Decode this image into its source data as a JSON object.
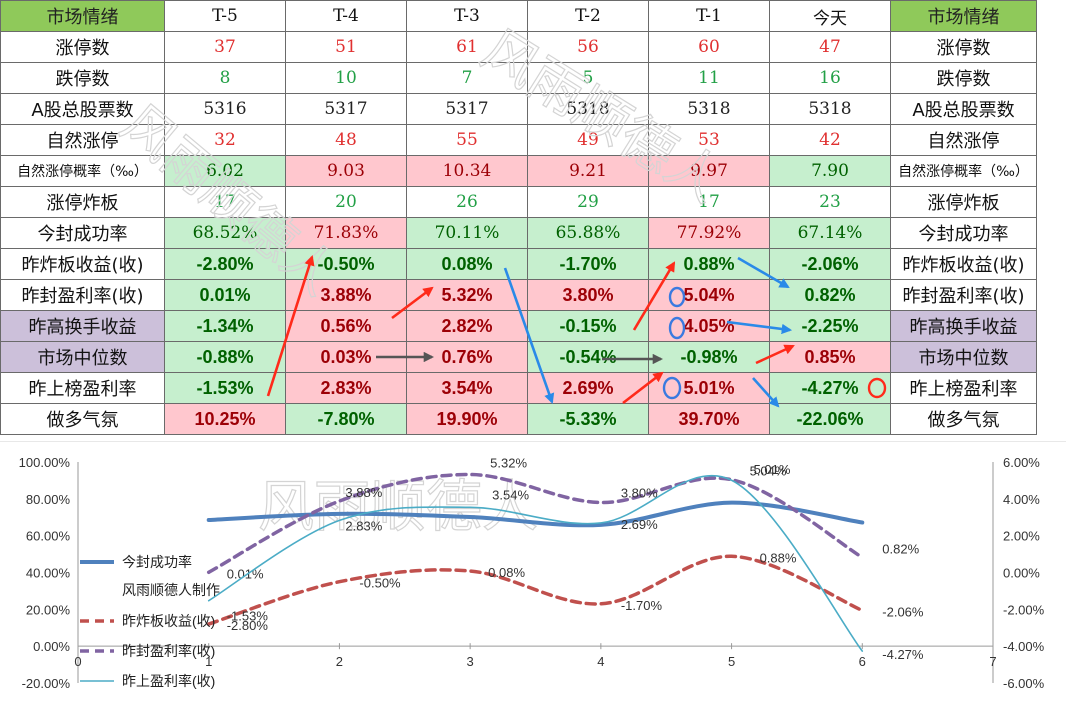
{
  "table": {
    "header": {
      "left_label": "市场情绪",
      "columns": [
        "T-5",
        "T-4",
        "T-3",
        "T-2",
        "T-1",
        "今天"
      ],
      "right_label": "市场情绪"
    },
    "rows": [
      {
        "label": "涨停数",
        "values": [
          "37",
          "51",
          "61",
          "56",
          "60",
          "47"
        ],
        "color": "#e03030"
      },
      {
        "label": "跌停数",
        "values": [
          "8",
          "10",
          "7",
          "5",
          "11",
          "16"
        ],
        "color": "#22a046"
      },
      {
        "label": "A股总股票数",
        "values": [
          "5316",
          "5317",
          "5317",
          "5318",
          "5318",
          "5318"
        ],
        "color": "#222222"
      },
      {
        "label": "自然涨停",
        "values": [
          "32",
          "48",
          "55",
          "49",
          "53",
          "42"
        ],
        "color": "#e03030"
      },
      {
        "label": "自然涨停概率（‰）",
        "values": [
          "6.02",
          "9.03",
          "10.34",
          "9.21",
          "9.97",
          "7.90"
        ],
        "bg": [
          "g",
          "r",
          "r",
          "r",
          "r",
          "g"
        ],
        "small_label": true
      },
      {
        "label": "涨停炸板",
        "values": [
          "17",
          "20",
          "26",
          "29",
          "17",
          "23"
        ],
        "color": "#22a046"
      },
      {
        "label": "今封成功率",
        "values": [
          "68.52%",
          "71.83%",
          "70.11%",
          "65.88%",
          "77.92%",
          "67.14%"
        ],
        "bg": [
          "g",
          "r",
          "g",
          "g",
          "r",
          "g"
        ]
      },
      {
        "label": "昨炸板收益(收)",
        "values": [
          "-2.80%",
          "-0.50%",
          "0.08%",
          "-1.70%",
          "0.88%",
          "-2.06%"
        ],
        "bg": [
          "g",
          "g",
          "g",
          "g",
          "g",
          "g"
        ],
        "bold": true
      },
      {
        "label": "昨封盈利率(收)",
        "values": [
          "0.01%",
          "3.88%",
          "5.32%",
          "3.80%",
          "5.04%",
          "0.82%"
        ],
        "bg": [
          "g",
          "r",
          "r",
          "r",
          "r",
          "g"
        ],
        "bold": true
      },
      {
        "label": "昨高换手收益",
        "values": [
          "-1.34%",
          "0.56%",
          "2.82%",
          "-0.15%",
          "4.05%",
          "-2.25%"
        ],
        "bg": [
          "g",
          "r",
          "r",
          "g",
          "r",
          "g"
        ],
        "bold": true,
        "purple": true
      },
      {
        "label": "市场中位数",
        "values": [
          "-0.88%",
          "0.03%",
          "0.76%",
          "-0.54%",
          "-0.98%",
          "0.85%"
        ],
        "bg": [
          "g",
          "r",
          "r",
          "g",
          "g",
          "r"
        ],
        "bold": true,
        "purple": true
      },
      {
        "label": "昨上榜盈利率",
        "values": [
          "-1.53%",
          "2.83%",
          "3.54%",
          "2.69%",
          "5.01%",
          "-4.27%"
        ],
        "bg": [
          "g",
          "r",
          "r",
          "r",
          "r",
          "g"
        ],
        "bold": true
      },
      {
        "label": "做多气氛",
        "values": [
          "10.25%",
          "-7.80%",
          "19.90%",
          "-5.33%",
          "39.70%",
          "-22.06%"
        ],
        "bg": [
          "r",
          "g",
          "r",
          "g",
          "r",
          "g"
        ],
        "bold": true
      }
    ]
  },
  "watermark_text": "风雨顺德人",
  "chart_data": {
    "type": "line",
    "x": [
      1,
      2,
      3,
      4,
      5,
      6
    ],
    "xlim": [
      0,
      7
    ],
    "xticks": [
      "0",
      "1",
      "2",
      "3",
      "4",
      "5",
      "6",
      "7"
    ],
    "y_left_ticks": [
      "100.00%",
      "80.00%",
      "60.00%",
      "40.00%",
      "20.00%",
      "0.00%",
      "-20.00%"
    ],
    "y_left_range": [
      -20,
      100
    ],
    "y_right_ticks": [
      "6.00%",
      "4.00%",
      "2.00%",
      "0.00%",
      "-2.00%",
      "-4.00%",
      "-6.00%"
    ],
    "y_right_range": [
      -6,
      6
    ],
    "series": [
      {
        "name": "今封成功率",
        "axis": "left",
        "values": [
          68.52,
          71.83,
          70.11,
          65.88,
          77.92,
          67.14
        ],
        "color": "#4f81bd",
        "dash": "",
        "width": 4,
        "labels": []
      },
      {
        "name": "昨炸板收益(收)",
        "axis": "right",
        "values": [
          -2.8,
          -0.5,
          0.08,
          -1.7,
          0.88,
          -2.06
        ],
        "color": "#c0504d",
        "dash": "9,6",
        "width": 3.5,
        "labels": [
          "-2.80%",
          "-0.50%",
          "0.08%",
          "-1.70%",
          "0.88%",
          "-2.06%"
        ]
      },
      {
        "name": "昨封盈利率(收)",
        "axis": "right",
        "values": [
          0.01,
          3.88,
          5.32,
          3.8,
          5.04,
          0.82
        ],
        "color": "#8064a2",
        "dash": "9,6",
        "width": 3.5,
        "labels": [
          "0.01%",
          "3.88%",
          "5.32%",
          "3.80%",
          "5.04%",
          "0.82%"
        ]
      },
      {
        "name": "昨上盈利率(收)",
        "axis": "right",
        "values": [
          -1.53,
          2.83,
          3.54,
          2.69,
          5.01,
          -4.27
        ],
        "color": "#4bacc6",
        "dash": "",
        "width": 1.6,
        "labels": [
          "-1.53%",
          "2.83%",
          "3.54%",
          "2.69%",
          "5.01%",
          "-4.27%"
        ]
      }
    ],
    "legend": {
      "placement": "left",
      "items": [
        "今封成功率",
        "风雨顺德人制作",
        "昨炸板收益(收)",
        "昨封盈利率(收)",
        "昨上盈利率(收)"
      ]
    }
  }
}
